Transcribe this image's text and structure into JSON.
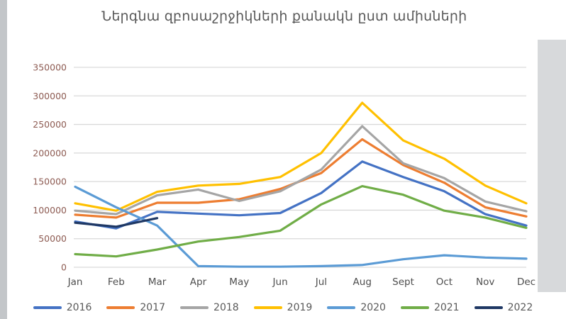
{
  "chart_data": {
    "type": "line",
    "title": "Ներգնա զբոսաշրջիկների քանակն ըստ ամիսների",
    "categories": [
      "Jan",
      "Feb",
      "Mar",
      "Apr",
      "May",
      "Jun",
      "Jul",
      "Aug",
      "Sept",
      "Oct",
      "Nov",
      "Dec"
    ],
    "ylim": [
      0,
      350000
    ],
    "y_tick_step": 50000,
    "y_tick_labels": [
      "0",
      "50000",
      "100000",
      "150000",
      "200000",
      "250000",
      "300000",
      "350000"
    ],
    "grid": true,
    "legend_position": "bottom",
    "series": [
      {
        "name": "2016",
        "color": "#4472C4",
        "values": [
          80000,
          68000,
          97000,
          94000,
          91000,
          95000,
          130000,
          185000,
          158000,
          133000,
          93000,
          73000
        ]
      },
      {
        "name": "2017",
        "color": "#ED7D31",
        "values": [
          92000,
          87000,
          113000,
          113000,
          119000,
          137000,
          165000,
          224000,
          179000,
          148000,
          105000,
          89000
        ]
      },
      {
        "name": "2018",
        "color": "#A5A5A5",
        "values": [
          99000,
          93000,
          126000,
          136000,
          116000,
          133000,
          171000,
          247000,
          182000,
          156000,
          115000,
          98000
        ]
      },
      {
        "name": "2019",
        "color": "#FFC000",
        "values": [
          112000,
          99000,
          132000,
          143000,
          146000,
          158000,
          200000,
          288000,
          222000,
          190000,
          143000,
          112000
        ]
      },
      {
        "name": "2020",
        "color": "#5B9BD5",
        "values": [
          141000,
          105000,
          73000,
          2000,
          1000,
          1000,
          2000,
          4000,
          14000,
          21000,
          17000,
          15000
        ]
      },
      {
        "name": "2021",
        "color": "#70AD47",
        "values": [
          23000,
          19000,
          31000,
          45000,
          53000,
          64000,
          110000,
          142000,
          127000,
          99000,
          87000,
          69000
        ]
      },
      {
        "name": "2022",
        "color": "#1F3864",
        "values": [
          78000,
          71000,
          86000,
          null,
          null,
          null,
          null,
          null,
          null,
          null,
          null,
          null
        ]
      }
    ],
    "colors": {
      "grid": "#d9d9d9",
      "title": "#595959",
      "y_labels": "#8d5b52",
      "x_labels": "#4d4d4d",
      "legend_text": "#595959",
      "background": "#ffffff",
      "edge_strip": "#c9cdd2"
    }
  }
}
